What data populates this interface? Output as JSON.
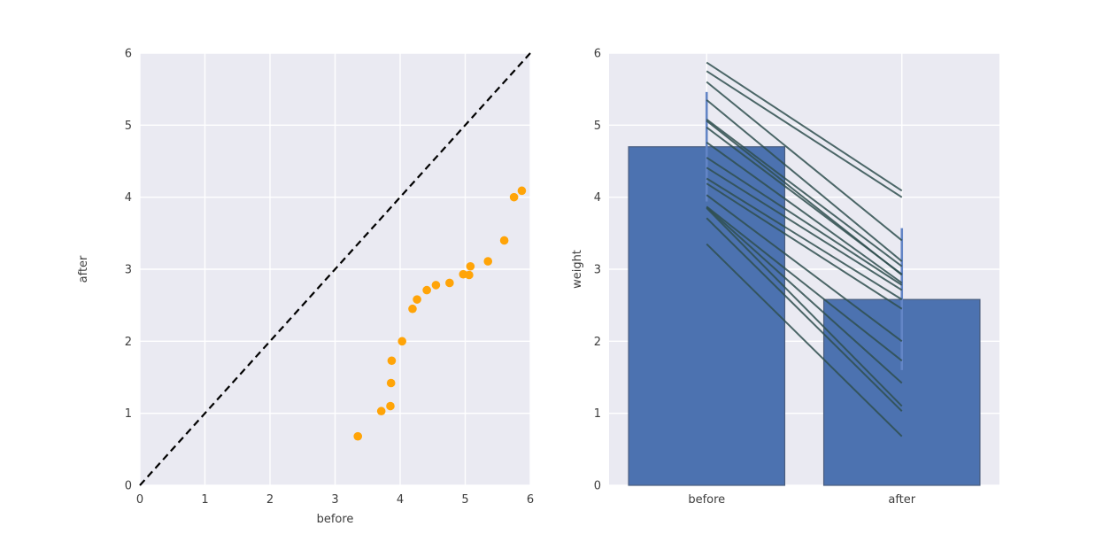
{
  "figure": {
    "background": "#ffffff",
    "axes_background": "#eaeaf2",
    "grid_color": "#ffffff",
    "text_color": "#3d3d3d"
  },
  "chart_data": [
    {
      "type": "scatter",
      "title": "",
      "xlabel": "before",
      "ylabel": "after",
      "xlim": [
        0,
        6
      ],
      "ylim": [
        0,
        6
      ],
      "xticks": [
        "0",
        "1",
        "2",
        "3",
        "4",
        "5",
        "6"
      ],
      "yticks": [
        "0",
        "1",
        "2",
        "3",
        "4",
        "5",
        "6"
      ],
      "grid": true,
      "marker_color": "#FFA408",
      "identity_line": {
        "from": [
          0,
          0
        ],
        "to": [
          6,
          6
        ],
        "style": "dashed",
        "color": "#000000"
      },
      "points": [
        [
          3.35,
          0.68
        ],
        [
          3.71,
          1.03
        ],
        [
          3.85,
          1.1
        ],
        [
          3.86,
          1.42
        ],
        [
          3.87,
          1.73
        ],
        [
          4.03,
          2.0
        ],
        [
          4.19,
          2.45
        ],
        [
          4.26,
          2.58
        ],
        [
          4.41,
          2.71
        ],
        [
          4.55,
          2.78
        ],
        [
          4.76,
          2.81
        ],
        [
          4.97,
          2.93
        ],
        [
          5.06,
          2.92
        ],
        [
          5.08,
          3.04
        ],
        [
          5.35,
          3.11
        ],
        [
          5.6,
          3.4
        ],
        [
          5.75,
          4.0
        ],
        [
          5.87,
          4.09
        ]
      ]
    },
    {
      "type": "bar",
      "title": "",
      "xlabel": "",
      "ylabel": "weight",
      "categories": [
        "before",
        "after"
      ],
      "values": [
        4.7,
        2.58
      ],
      "error_bars": [
        [
          3.94,
          5.46
        ],
        [
          1.6,
          3.57
        ]
      ],
      "ylim": [
        0,
        6
      ],
      "yticks": [
        "0",
        "1",
        "2",
        "3",
        "4",
        "5",
        "6"
      ],
      "grid": true,
      "bar_color": "#4C72B0",
      "bar_edge_color": "#4a5d7e",
      "error_color": "#6385C6",
      "pair_line_color": "#2F4F4F",
      "paired_lines": [
        [
          3.35,
          0.68
        ],
        [
          3.71,
          1.03
        ],
        [
          3.85,
          1.1
        ],
        [
          3.86,
          1.42
        ],
        [
          3.87,
          1.73
        ],
        [
          4.03,
          2.0
        ],
        [
          4.19,
          2.45
        ],
        [
          4.26,
          2.58
        ],
        [
          4.41,
          2.71
        ],
        [
          4.55,
          2.78
        ],
        [
          4.76,
          2.81
        ],
        [
          4.97,
          2.93
        ],
        [
          5.06,
          2.92
        ],
        [
          5.08,
          3.04
        ],
        [
          5.35,
          3.11
        ],
        [
          5.6,
          3.4
        ],
        [
          5.75,
          4.0
        ],
        [
          5.87,
          4.09
        ]
      ]
    }
  ]
}
